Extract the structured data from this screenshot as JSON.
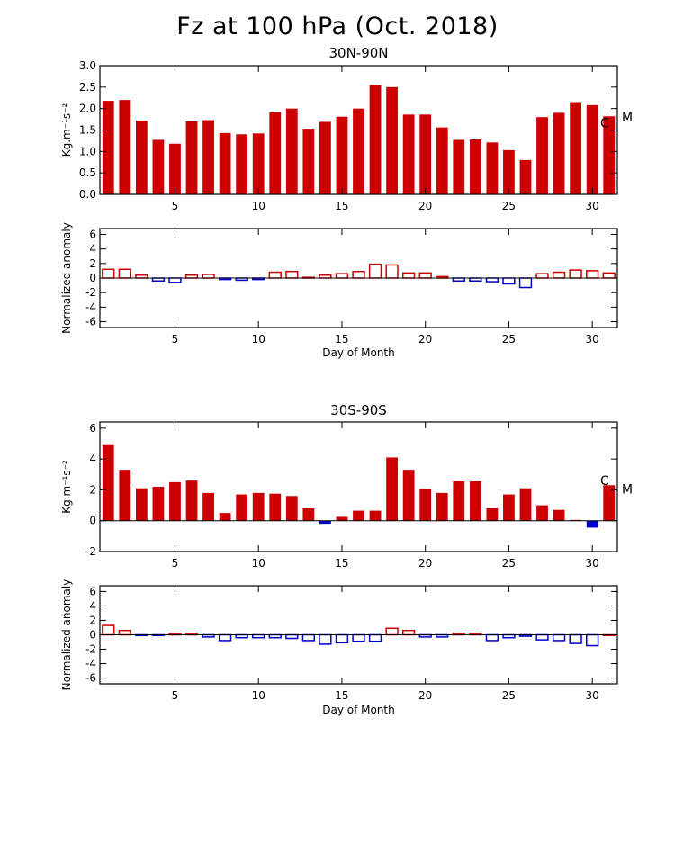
{
  "title": "Fz at 100 hPa (Oct. 2018)",
  "colors": {
    "positive": "#cc0000",
    "negative": "#0000cc",
    "axis": "#000000"
  },
  "annotations": [
    "C",
    "M"
  ],
  "chart_data": [
    {
      "type": "bar",
      "title": "30N-90N",
      "ylabel": "Kg.m⁻¹s⁻²",
      "xlabel": "",
      "xlim": [
        0.5,
        31.5
      ],
      "ylim": [
        0,
        3.0
      ],
      "yticks": [
        0.0,
        0.5,
        1.0,
        1.5,
        2.0,
        2.5,
        3.0
      ],
      "ytick_labels": [
        "0.0",
        "0.5",
        "1.0",
        "1.5",
        "2.0",
        "2.5",
        "3.0"
      ],
      "xticks": [
        5,
        10,
        15,
        20,
        25,
        30
      ],
      "style": "filled",
      "x": [
        1,
        2,
        3,
        4,
        5,
        6,
        7,
        8,
        9,
        10,
        11,
        12,
        13,
        14,
        15,
        16,
        17,
        18,
        19,
        20,
        21,
        22,
        23,
        24,
        25,
        26,
        27,
        28,
        29,
        30,
        31
      ],
      "values": [
        2.18,
        2.2,
        1.72,
        1.27,
        1.18,
        1.7,
        1.73,
        1.43,
        1.4,
        1.42,
        1.91,
        2.0,
        1.53,
        1.69,
        1.81,
        2.0,
        2.55,
        2.5,
        1.86,
        1.86,
        1.56,
        1.27,
        1.28,
        1.21,
        1.03,
        0.8,
        1.8,
        1.9,
        2.15,
        2.08,
        1.82
      ],
      "annotation_values": [
        1.67,
        1.8
      ]
    },
    {
      "type": "bar",
      "title": "",
      "ylabel": "Normalized anomaly",
      "xlabel": "Day of Month",
      "xlim": [
        0.5,
        31.5
      ],
      "ylim": [
        -6.8,
        6.8
      ],
      "yticks": [
        -6,
        -4,
        -2,
        0,
        2,
        4,
        6
      ],
      "ytick_labels": [
        "-6",
        "-4",
        "-2",
        "0",
        "2",
        "4",
        "6"
      ],
      "xticks": [
        5,
        10,
        15,
        20,
        25,
        30
      ],
      "style": "outline",
      "x": [
        1,
        2,
        3,
        4,
        5,
        6,
        7,
        8,
        9,
        10,
        11,
        12,
        13,
        14,
        15,
        16,
        17,
        18,
        19,
        20,
        21,
        22,
        23,
        24,
        25,
        26,
        27,
        28,
        29,
        30,
        31
      ],
      "values": [
        1.2,
        1.2,
        0.4,
        -0.4,
        -0.6,
        0.4,
        0.5,
        -0.2,
        -0.3,
        -0.2,
        0.8,
        0.9,
        0.1,
        0.4,
        0.6,
        0.9,
        1.9,
        1.8,
        0.7,
        0.7,
        0.2,
        -0.4,
        -0.4,
        -0.5,
        -0.8,
        -1.3,
        0.6,
        0.8,
        1.1,
        1.0,
        0.7
      ]
    },
    {
      "type": "bar",
      "title": "30S-90S",
      "ylabel": "Kg.m⁻¹s⁻²",
      "xlabel": "",
      "xlim": [
        0.5,
        31.5
      ],
      "ylim": [
        -2.0,
        6.4
      ],
      "yticks": [
        -2,
        0,
        2,
        4,
        6
      ],
      "ytick_labels": [
        "-2",
        "0",
        "2",
        "4",
        "6"
      ],
      "xticks": [
        5,
        10,
        15,
        20,
        25,
        30
      ],
      "style": "filled",
      "x": [
        1,
        2,
        3,
        4,
        5,
        6,
        7,
        8,
        9,
        10,
        11,
        12,
        13,
        14,
        15,
        16,
        17,
        18,
        19,
        20,
        21,
        22,
        23,
        24,
        25,
        26,
        27,
        28,
        29,
        30,
        31
      ],
      "values": [
        4.9,
        3.3,
        2.1,
        2.2,
        2.5,
        2.6,
        1.8,
        0.5,
        1.7,
        1.8,
        1.75,
        1.6,
        0.8,
        -0.2,
        0.25,
        0.65,
        0.65,
        4.1,
        3.3,
        2.05,
        1.8,
        2.55,
        2.55,
        0.8,
        1.7,
        2.1,
        1.0,
        0.7,
        0.05,
        -0.45,
        2.3
      ],
      "annotation_values": [
        2.6,
        2.05
      ]
    },
    {
      "type": "bar",
      "title": "",
      "ylabel": "Normalized anomaly",
      "xlabel": "Day of Month",
      "xlim": [
        0.5,
        31.5
      ],
      "ylim": [
        -6.8,
        6.8
      ],
      "yticks": [
        -6,
        -4,
        -2,
        0,
        2,
        4,
        6
      ],
      "ytick_labels": [
        "-6",
        "-4",
        "-2",
        "0",
        "2",
        "4",
        "6"
      ],
      "xticks": [
        5,
        10,
        15,
        20,
        25,
        30
      ],
      "style": "outline",
      "x": [
        1,
        2,
        3,
        4,
        5,
        6,
        7,
        8,
        9,
        10,
        11,
        12,
        13,
        14,
        15,
        16,
        17,
        18,
        19,
        20,
        21,
        22,
        23,
        24,
        25,
        26,
        27,
        28,
        29,
        30,
        31
      ],
      "values": [
        1.3,
        0.6,
        -0.1,
        -0.1,
        0.2,
        0.2,
        -0.3,
        -0.8,
        -0.4,
        -0.4,
        -0.4,
        -0.5,
        -0.8,
        -1.3,
        -1.1,
        -0.9,
        -0.9,
        0.9,
        0.6,
        -0.3,
        -0.3,
        0.2,
        0.2,
        -0.8,
        -0.4,
        -0.2,
        -0.7,
        -0.8,
        -1.2,
        -1.5,
        0.0
      ]
    }
  ]
}
